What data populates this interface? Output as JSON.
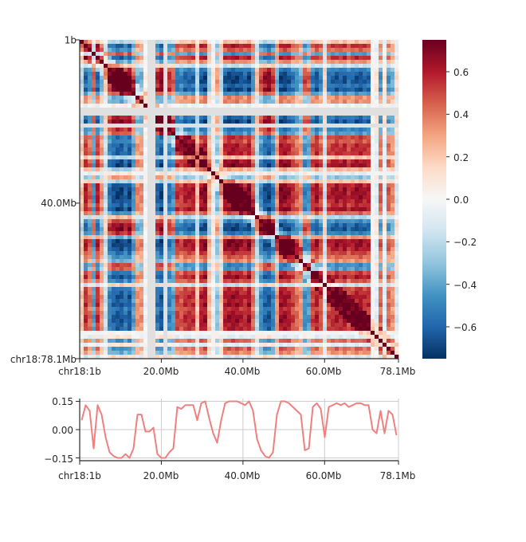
{
  "chart_data": [
    {
      "type": "heatmap",
      "title": "",
      "colormap": "RdBu_r",
      "x_tick_labels": [
        "chr18:1b",
        "20.0Mb",
        "40.0Mb",
        "60.0Mb",
        "78.1Mb"
      ],
      "x_tick_values_mb": [
        0,
        20,
        40,
        60,
        78.1
      ],
      "y_tick_labels": [
        "1b",
        "40.0Mb",
        "chr18:78.1Mb"
      ],
      "y_tick_values_mb": [
        0,
        40,
        78.1
      ],
      "range_mb": [
        0,
        78.1
      ],
      "bins": 80,
      "compartment_profile": [
        0.05,
        0.13,
        0.1,
        -0.1,
        0.13,
        0.08,
        -0.04,
        -0.12,
        -0.14,
        -0.15,
        -0.15,
        -0.13,
        -0.15,
        -0.1,
        0.08,
        0.08,
        -0.01,
        -0.01,
        0.01,
        -0.13,
        -0.15,
        -0.15,
        -0.12,
        -0.1,
        0.12,
        0.11,
        0.13,
        0.13,
        0.13,
        0.05,
        0.14,
        0.15,
        0.06,
        -0.02,
        -0.07,
        0.05,
        0.14,
        0.15,
        0.15,
        0.15,
        0.14,
        0.13,
        0.15,
        0.1,
        -0.05,
        -0.11,
        -0.14,
        -0.15,
        -0.12,
        0.08,
        0.15,
        0.15,
        0.14,
        0.12,
        0.1,
        0.08,
        -0.11,
        -0.1,
        0.12,
        0.14,
        0.11,
        -0.04,
        0.12,
        0.13,
        0.14,
        0.13,
        0.14,
        0.12,
        0.13,
        0.14,
        0.14,
        0.13,
        0.13,
        0.0,
        -0.02,
        0.1,
        -0.02,
        0.1,
        0.08,
        -0.03
      ],
      "empty_bins": [
        17,
        18,
        21
      ],
      "colorbar": {
        "min": -0.75,
        "max": 0.75,
        "tick_labels": [
          "0.6",
          "0.4",
          "0.2",
          "0.0",
          "−0.2",
          "−0.4",
          "−0.6"
        ],
        "tick_values": [
          0.6,
          0.4,
          0.2,
          0.0,
          -0.2,
          -0.4,
          -0.6
        ]
      }
    },
    {
      "type": "line",
      "title": "",
      "x_tick_labels": [
        "chr18:1b",
        "20.0Mb",
        "40.0Mb",
        "60.0Mb",
        "78.1Mb"
      ],
      "x_tick_values_mb": [
        0,
        20,
        40,
        60,
        78.1
      ],
      "xlim_mb": [
        0,
        78.1
      ],
      "ylim": [
        -0.165,
        0.165
      ],
      "y_tick_labels": [
        "0.15",
        "0.00",
        "−0.15"
      ],
      "y_tick_values": [
        0.15,
        0.0,
        -0.15
      ],
      "grid": true,
      "line_color": "#f08080"
    }
  ]
}
